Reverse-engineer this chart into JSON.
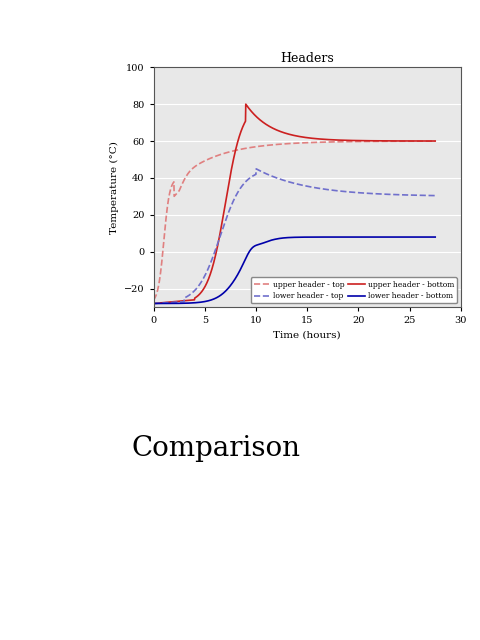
{
  "title": "Headers",
  "xlabel": "Time (hours)",
  "ylabel": "Temperature (°C)",
  "xlim": [
    0,
    30
  ],
  "ylim": [
    -30,
    100
  ],
  "yticks": [
    -20,
    0,
    20,
    40,
    60,
    80,
    100
  ],
  "xticks": [
    0,
    5,
    10,
    15,
    20,
    25,
    30
  ],
  "comparison_text": "Comparison",
  "series": {
    "upper_top": {
      "color": "#e08080",
      "linestyle": "dashed",
      "label": "upper header - top"
    },
    "upper_bottom": {
      "color": "#cc2020",
      "linestyle": "solid",
      "label": "upper header - bottom"
    },
    "lower_top": {
      "color": "#7070cc",
      "linestyle": "dashed",
      "label": "lower header - top"
    },
    "lower_bottom": {
      "color": "#0000aa",
      "linestyle": "solid",
      "label": "lower header - bottom"
    }
  },
  "bg_color": "#e8e8e8",
  "fig_color": "#ffffff"
}
